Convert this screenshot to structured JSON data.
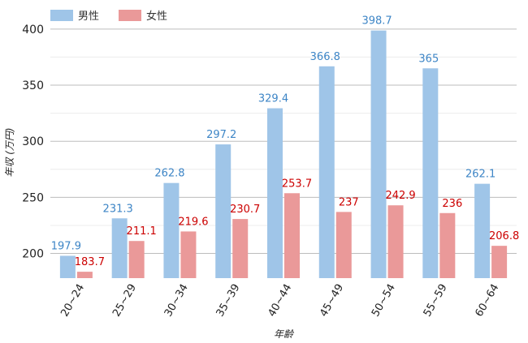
{
  "chart_data": {
    "type": "bar",
    "categories": [
      "20~24",
      "25~29",
      "30~34",
      "35~39",
      "40~44",
      "45~49",
      "50~54",
      "55~59",
      "60~64"
    ],
    "series": [
      {
        "name": "男性",
        "color": "#9fc5e8",
        "label_color": "#3d85c6",
        "values": [
          197.9,
          231.3,
          262.8,
          297.2,
          329.4,
          366.8,
          398.7,
          365,
          262.1
        ],
        "labels": [
          "197.9",
          "231.3",
          "262.8",
          "297.2",
          "329.4",
          "366.8",
          "398.7",
          "365",
          "262.1"
        ]
      },
      {
        "name": "女性",
        "color": "#ea9999",
        "label_color": "#cc0000",
        "values": [
          183.7,
          211.1,
          219.6,
          230.7,
          253.7,
          237,
          242.9,
          236,
          206.8
        ],
        "labels": [
          "183.7",
          "211.1",
          "219.6",
          "230.7",
          "253.7",
          "237",
          "242.9",
          "236",
          "206.8"
        ]
      }
    ],
    "xlabel": "年齢",
    "ylabel": "年収 (万円)",
    "ylim": [
      178,
      410
    ],
    "yticks": [
      200,
      250,
      300,
      350,
      400
    ],
    "ytick_labels": [
      "200",
      "250",
      "300",
      "350",
      "400"
    ],
    "grid": true,
    "legend": "top-left"
  }
}
